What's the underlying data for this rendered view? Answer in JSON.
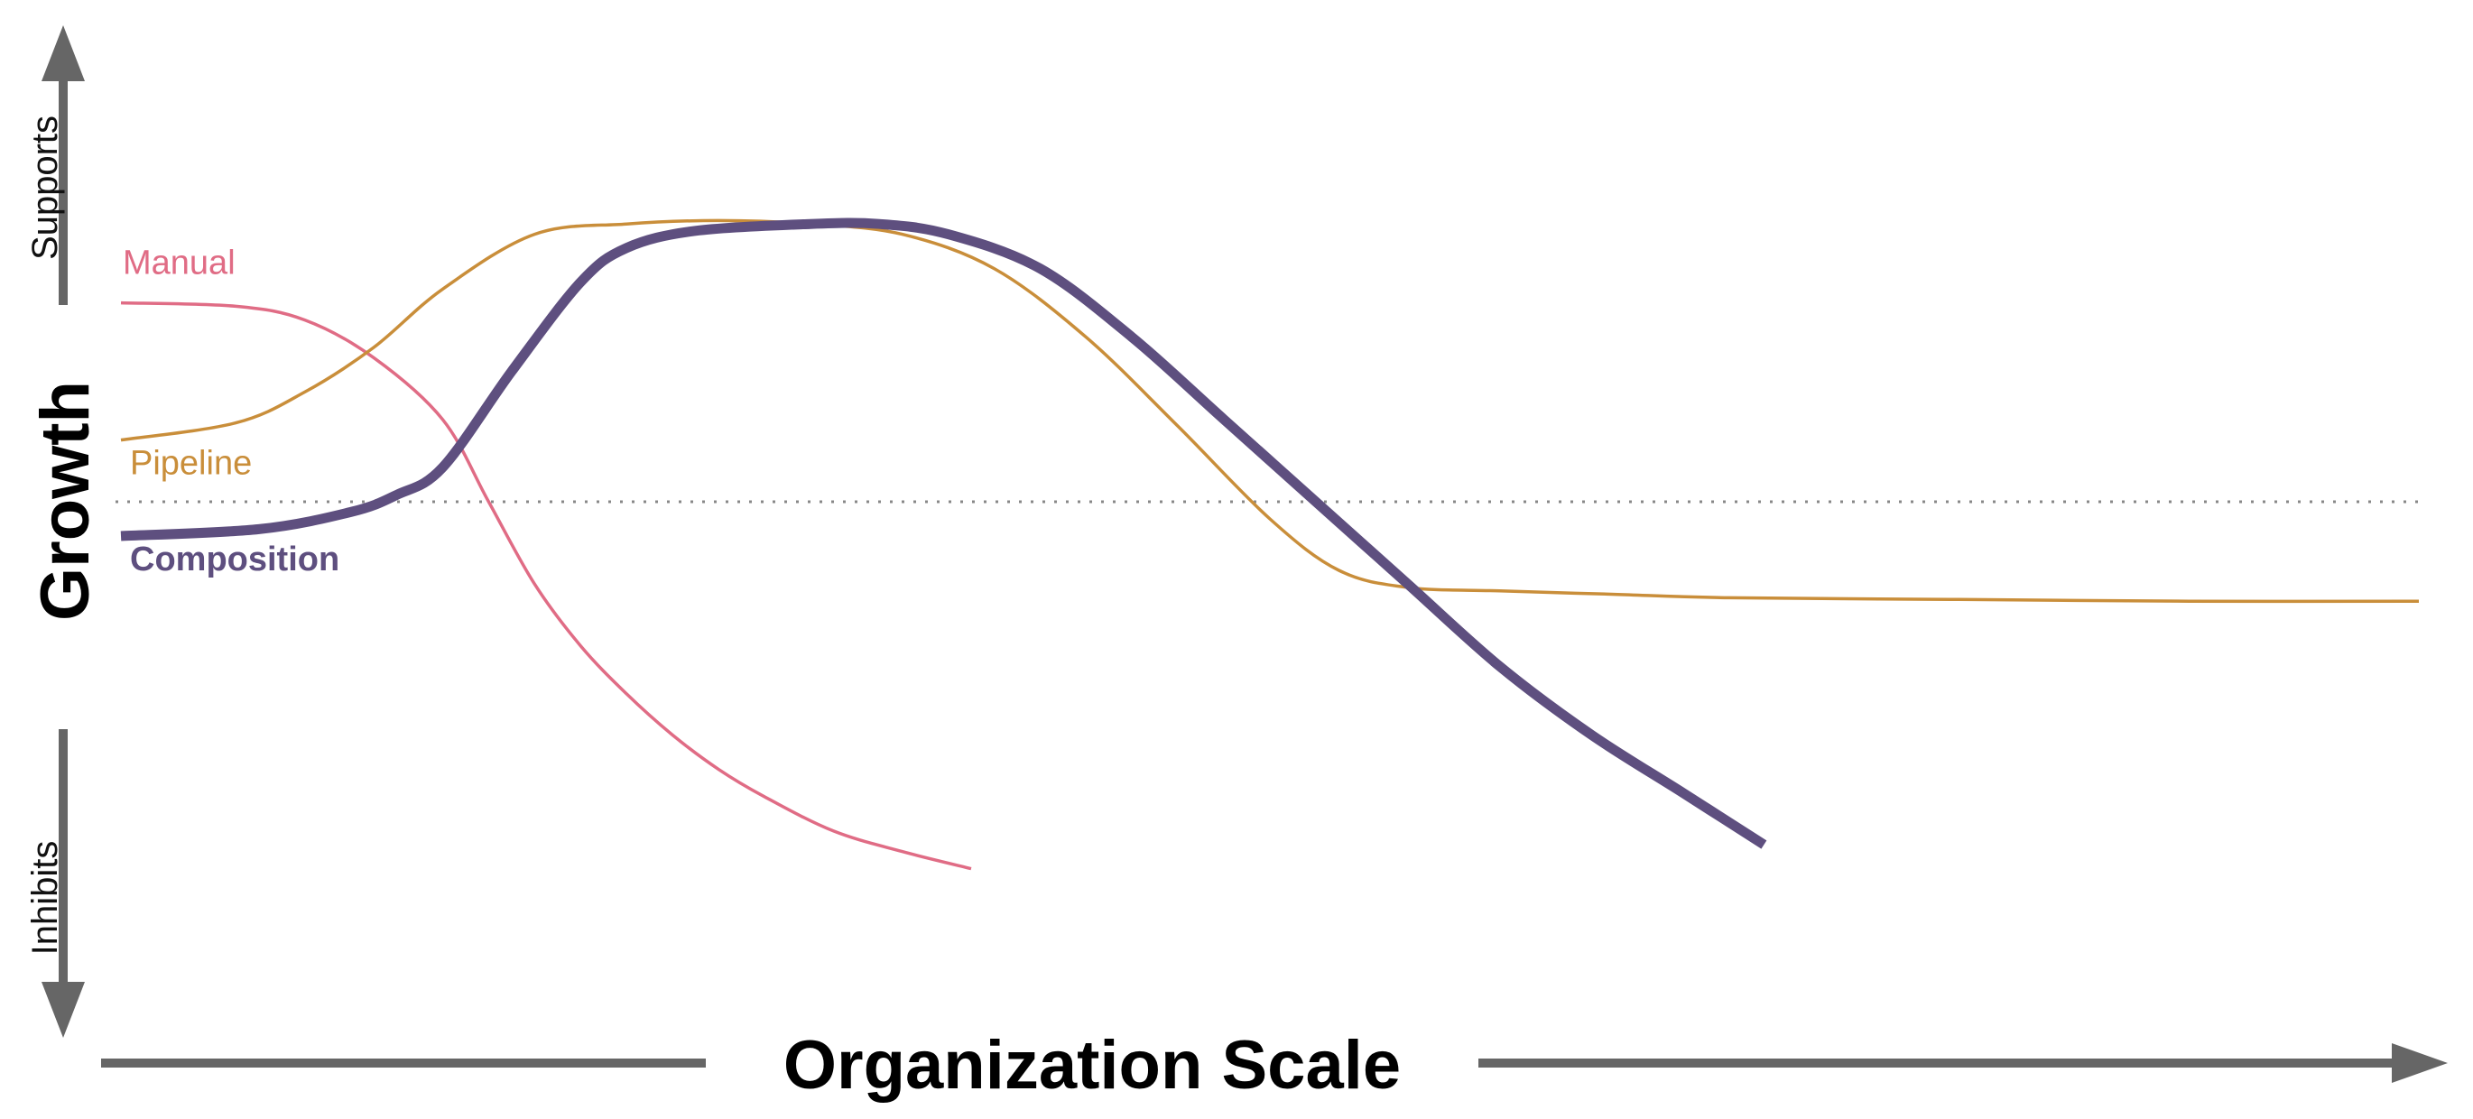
{
  "chart_data": {
    "type": "line",
    "xlabel": "Organization Scale",
    "ylabel": "Growth",
    "y_top_label": "Supports",
    "y_bottom_label": "Inhibits",
    "xlim": [
      0,
      100
    ],
    "ylim": [
      -100,
      100
    ],
    "baseline": 0,
    "grid": false,
    "legend": "inline",
    "axis_color": "#666666",
    "baseline_color": "#888888",
    "series": [
      {
        "name": "Manual",
        "color": "#E06C85",
        "emphasis": "thin",
        "x": [
          0,
          5,
          8,
          11,
          14,
          16,
          18,
          20,
          22,
          24,
          26,
          28,
          31,
          34,
          37
        ],
        "y": [
          58,
          57,
          53,
          42,
          24,
          0,
          -24,
          -42,
          -56,
          -68,
          -78,
          -86,
          -96,
          -102,
          -107
        ]
      },
      {
        "name": "Pipeline",
        "color": "#C98E3A",
        "emphasis": "thin",
        "x": [
          0,
          5,
          8,
          11,
          14,
          18,
          22,
          26,
          30,
          34,
          38,
          42,
          46,
          50,
          53,
          56,
          60,
          65,
          70,
          80,
          90,
          100
        ],
        "y": [
          18,
          23,
          32,
          45,
          62,
          78,
          81,
          82,
          81,
          78,
          68,
          48,
          22,
          -5,
          -20,
          -25,
          -26,
          -27,
          -28,
          -28.5,
          -29,
          -29
        ]
      },
      {
        "name": "Composition",
        "color": "#5E4F7F",
        "emphasis": "thick",
        "x": [
          0,
          6,
          10,
          12,
          14,
          17,
          20,
          22,
          25,
          30,
          33,
          36,
          40,
          44,
          48,
          52,
          56,
          60,
          64,
          68,
          71.5
        ],
        "y": [
          -10,
          -8,
          -3,
          2,
          10,
          38,
          64,
          74,
          79,
          81,
          81,
          78,
          68,
          48,
          24,
          0,
          -24,
          -48,
          -68,
          -85,
          -100
        ]
      }
    ]
  }
}
